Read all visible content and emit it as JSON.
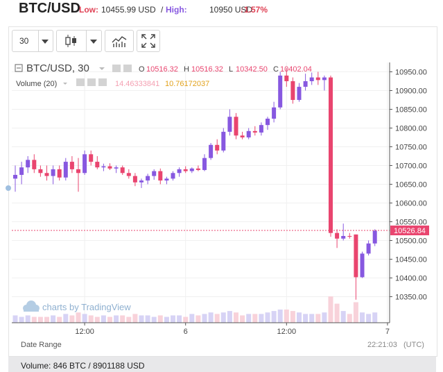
{
  "header": {
    "pair": "BTC/USD",
    "low_label": "Low:",
    "low_value": "10455.99 USD",
    "separator": "/",
    "high_label": "High:",
    "high_value": "10950 USD",
    "change": "↓1.57%"
  },
  "toolbar": {
    "interval": "30",
    "chart_type_icon": "candlestick-icon",
    "indicators_icon": "indicators-icon",
    "fullscreen_icon": "fullscreen-icon"
  },
  "legend": {
    "symbol": "BTC/USD, 30",
    "o_label": "O",
    "o_value": "10516.32",
    "h_label": "H",
    "h_value": "10516.32",
    "l_label": "L",
    "l_value": "10342.50",
    "c_label": "C",
    "c_value": "10402.04",
    "volume_label": "Volume (20)",
    "volume_value": "14.46333841",
    "volume_ma": "10.76172037"
  },
  "watermark": "charts by TradingView",
  "chart_data": {
    "type": "candlestick",
    "y_ticks": [
      "10950.00",
      "10900.00",
      "10850.00",
      "10800.00",
      "10750.00",
      "10700.00",
      "10650.00",
      "10600.00",
      "10550.00",
      "10500.00",
      "10450.00",
      "10400.00",
      "10350.00"
    ],
    "x_ticks": [
      "12:00",
      "6",
      "12:00",
      "7"
    ],
    "ylim": [
      10312,
      10962
    ],
    "last_price": "10526.84",
    "grid": true,
    "colors": {
      "up": "#8758e0",
      "down": "#e9456f",
      "vol_up": "#d7d3f5",
      "vol_down": "#f8d2da"
    },
    "candles": [
      {
        "o": 10665,
        "h": 10700,
        "l": 10630,
        "c": 10675
      },
      {
        "o": 10675,
        "h": 10710,
        "l": 10650,
        "c": 10695
      },
      {
        "o": 10695,
        "h": 10725,
        "l": 10680,
        "c": 10715
      },
      {
        "o": 10715,
        "h": 10730,
        "l": 10680,
        "c": 10690
      },
      {
        "o": 10690,
        "h": 10700,
        "l": 10670,
        "c": 10680
      },
      {
        "o": 10680,
        "h": 10700,
        "l": 10660,
        "c": 10672
      },
      {
        "o": 10672,
        "h": 10700,
        "l": 10650,
        "c": 10690
      },
      {
        "o": 10690,
        "h": 10700,
        "l": 10660,
        "c": 10668
      },
      {
        "o": 10668,
        "h": 10720,
        "l": 10660,
        "c": 10710
      },
      {
        "o": 10710,
        "h": 10725,
        "l": 10680,
        "c": 10690
      },
      {
        "o": 10690,
        "h": 10720,
        "l": 10630,
        "c": 10680
      },
      {
        "o": 10680,
        "h": 10740,
        "l": 10675,
        "c": 10730
      },
      {
        "o": 10730,
        "h": 10740,
        "l": 10700,
        "c": 10710
      },
      {
        "o": 10710,
        "h": 10725,
        "l": 10690,
        "c": 10695
      },
      {
        "o": 10695,
        "h": 10705,
        "l": 10685,
        "c": 10698
      },
      {
        "o": 10698,
        "h": 10706,
        "l": 10688,
        "c": 10692
      },
      {
        "o": 10692,
        "h": 10700,
        "l": 10680,
        "c": 10695
      },
      {
        "o": 10695,
        "h": 10700,
        "l": 10675,
        "c": 10680
      },
      {
        "o": 10680,
        "h": 10690,
        "l": 10665,
        "c": 10672
      },
      {
        "o": 10672,
        "h": 10680,
        "l": 10645,
        "c": 10655
      },
      {
        "o": 10655,
        "h": 10665,
        "l": 10640,
        "c": 10660
      },
      {
        "o": 10660,
        "h": 10678,
        "l": 10650,
        "c": 10672
      },
      {
        "o": 10672,
        "h": 10690,
        "l": 10662,
        "c": 10685
      },
      {
        "o": 10685,
        "h": 10692,
        "l": 10650,
        "c": 10660
      },
      {
        "o": 10660,
        "h": 10670,
        "l": 10650,
        "c": 10665
      },
      {
        "o": 10665,
        "h": 10685,
        "l": 10660,
        "c": 10680
      },
      {
        "o": 10680,
        "h": 10695,
        "l": 10670,
        "c": 10690
      },
      {
        "o": 10690,
        "h": 10698,
        "l": 10680,
        "c": 10685
      },
      {
        "o": 10685,
        "h": 10695,
        "l": 10680,
        "c": 10692
      },
      {
        "o": 10692,
        "h": 10700,
        "l": 10685,
        "c": 10688
      },
      {
        "o": 10688,
        "h": 10730,
        "l": 10685,
        "c": 10720
      },
      {
        "o": 10720,
        "h": 10760,
        "l": 10715,
        "c": 10755
      },
      {
        "o": 10755,
        "h": 10770,
        "l": 10730,
        "c": 10740
      },
      {
        "o": 10740,
        "h": 10800,
        "l": 10735,
        "c": 10790
      },
      {
        "o": 10790,
        "h": 10850,
        "l": 10780,
        "c": 10830
      },
      {
        "o": 10830,
        "h": 10840,
        "l": 10770,
        "c": 10780
      },
      {
        "o": 10780,
        "h": 10790,
        "l": 10770,
        "c": 10775
      },
      {
        "o": 10775,
        "h": 10800,
        "l": 10770,
        "c": 10792
      },
      {
        "o": 10792,
        "h": 10805,
        "l": 10780,
        "c": 10788
      },
      {
        "o": 10788,
        "h": 10815,
        "l": 10780,
        "c": 10808
      },
      {
        "o": 10808,
        "h": 10830,
        "l": 10795,
        "c": 10825
      },
      {
        "o": 10825,
        "h": 10870,
        "l": 10815,
        "c": 10855
      },
      {
        "o": 10855,
        "h": 10950,
        "l": 10850,
        "c": 10940
      },
      {
        "o": 10940,
        "h": 10960,
        "l": 10910,
        "c": 10925
      },
      {
        "o": 10925,
        "h": 10935,
        "l": 10865,
        "c": 10875
      },
      {
        "o": 10875,
        "h": 10920,
        "l": 10870,
        "c": 10910
      },
      {
        "o": 10910,
        "h": 10945,
        "l": 10900,
        "c": 10925
      },
      {
        "o": 10925,
        "h": 10948,
        "l": 10915,
        "c": 10935
      },
      {
        "o": 10935,
        "h": 10950,
        "l": 10915,
        "c": 10928
      },
      {
        "o": 10928,
        "h": 10940,
        "l": 10900,
        "c": 10935
      },
      {
        "o": 10935,
        "h": 10940,
        "l": 10510,
        "c": 10520
      },
      {
        "o": 10520,
        "h": 10530,
        "l": 10480,
        "c": 10505
      },
      {
        "o": 10505,
        "h": 10545,
        "l": 10500,
        "c": 10512
      },
      {
        "o": 10512,
        "h": 10520,
        "l": 10505,
        "c": 10510
      },
      {
        "o": 10516,
        "h": 10516,
        "l": 10342,
        "c": 10402
      },
      {
        "o": 10402,
        "h": 10470,
        "l": 10400,
        "c": 10465
      },
      {
        "o": 10465,
        "h": 10500,
        "l": 10460,
        "c": 10492
      },
      {
        "o": 10492,
        "h": 10530,
        "l": 10485,
        "c": 10526
      }
    ],
    "volumes": [
      5,
      4,
      5,
      4,
      4,
      4,
      5,
      4,
      6,
      5,
      7,
      6,
      5,
      4,
      5,
      4,
      5,
      5,
      4,
      6,
      5,
      5,
      4,
      5,
      4,
      5,
      5,
      4,
      6,
      5,
      6,
      7,
      6,
      7,
      8,
      7,
      5,
      6,
      6,
      6,
      7,
      8,
      9,
      9,
      8,
      7,
      6,
      6,
      6,
      7,
      18,
      13,
      8,
      6,
      14,
      7,
      6,
      7
    ]
  },
  "axis": {
    "date_range": "Date Range",
    "time": "22:21:03",
    "tz": "(UTC)"
  },
  "footer": {
    "volume": "Volume: 846 BTC / 8901188 USD"
  }
}
